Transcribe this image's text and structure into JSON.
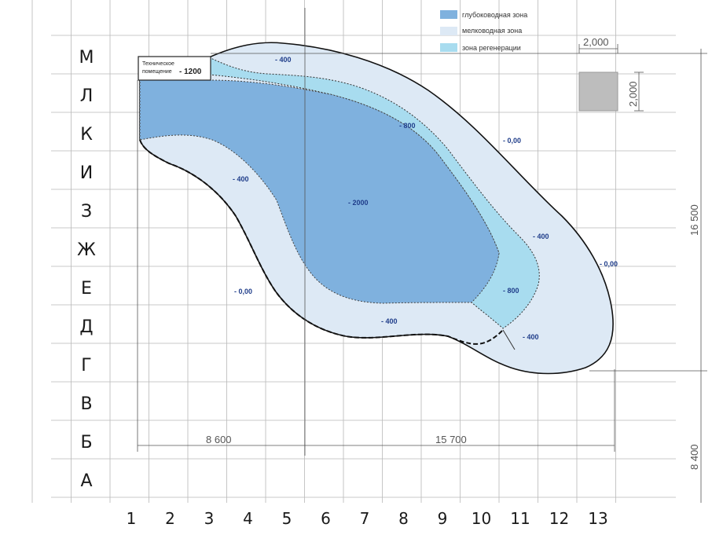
{
  "grid": {
    "rows": [
      "М",
      "Л",
      "К",
      "И",
      "З",
      "Ж",
      "Е",
      "Д",
      "Г",
      "В",
      "Б",
      "А"
    ],
    "cols": [
      "1",
      "2",
      "3",
      "4",
      "5",
      "6",
      "7",
      "8",
      "9",
      "10",
      "11",
      "12",
      "13"
    ]
  },
  "legend": [
    {
      "label": "глубоководная зона",
      "color": "#7fb1de"
    },
    {
      "label": "мелководная зона",
      "color": "#dde9f5"
    },
    {
      "label": "зона регенерации",
      "color": "#a8dcef"
    }
  ],
  "tech_room": {
    "line1": "Техническое",
    "line2": "помещение",
    "depth": "- 1200"
  },
  "depth_labels": {
    "top_400": "- 400",
    "ne_000": "- 0,00",
    "l_400": "- 400",
    "mid_800": "- 800",
    "deep_2000": "- 2000",
    "right_400": "- 400",
    "right_000": "- 0,00",
    "low_800": "- 800",
    "low_400": "- 400",
    "bottom_400": "- 400",
    "left_000": "- 0,00"
  },
  "dimensions": {
    "width_left": "8 600",
    "width_right": "15 700",
    "height_main": "16 500",
    "height_lower": "8 400",
    "square_w": "2,000",
    "square_h": "2,000"
  }
}
